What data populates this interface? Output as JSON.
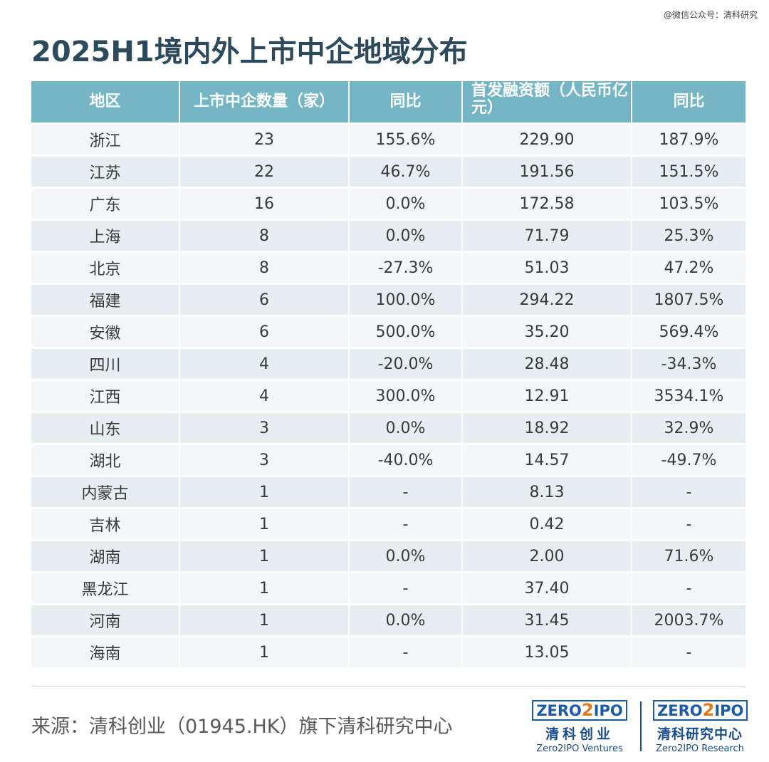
{
  "watermark": "@微信公众号：清科研究",
  "title": "2025H1境内外上市中企地域分布",
  "table": {
    "headers": [
      "地区",
      "上市中企数量（家）",
      "同比",
      "首发融资额（人民币亿元）",
      "同比"
    ],
    "rows": [
      [
        "浙江",
        "23",
        "155.6%",
        "229.90",
        "187.9%"
      ],
      [
        "江苏",
        "22",
        "46.7%",
        "191.56",
        "151.5%"
      ],
      [
        "广东",
        "16",
        "0.0%",
        "172.58",
        "103.5%"
      ],
      [
        "上海",
        "8",
        "0.0%",
        "71.79",
        "25.3%"
      ],
      [
        "北京",
        "8",
        "-27.3%",
        "51.03",
        "47.2%"
      ],
      [
        "福建",
        "6",
        "100.0%",
        "294.22",
        "1807.5%"
      ],
      [
        "安徽",
        "6",
        "500.0%",
        "35.20",
        "569.4%"
      ],
      [
        "四川",
        "4",
        "-20.0%",
        "28.48",
        "-34.3%"
      ],
      [
        "江西",
        "4",
        "300.0%",
        "12.91",
        "3534.1%"
      ],
      [
        "山东",
        "3",
        "0.0%",
        "18.92",
        "32.9%"
      ],
      [
        "湖北",
        "3",
        "-40.0%",
        "14.57",
        "-49.7%"
      ],
      [
        "内蒙古",
        "1",
        "-",
        "8.13",
        "-"
      ],
      [
        "吉林",
        "1",
        "-",
        "0.42",
        "-"
      ],
      [
        "湖南",
        "1",
        "0.0%",
        "2.00",
        "71.6%"
      ],
      [
        "黑龙江",
        "1",
        "-",
        "37.40",
        "-"
      ],
      [
        "河南",
        "1",
        "0.0%",
        "31.45",
        "2003.7%"
      ],
      [
        "海南",
        "1",
        "-",
        "13.05",
        "-"
      ]
    ]
  },
  "source": "来源：清科创业（01945.HK）旗下清科研究中心",
  "logos": {
    "ventures": {
      "brand_a": "ZERO",
      "brand_b": "2",
      "brand_c": "IPO",
      "cn": "清科创业",
      "en": "Zero2IPO Ventures"
    },
    "research": {
      "brand_a": "ZERO",
      "brand_b": "2",
      "brand_c": "IPO",
      "cn": "清科研究中心",
      "en": "Zero2IPO Research"
    }
  },
  "colors": {
    "header_bg": "#74b6c6",
    "title": "#2d4a5c",
    "logo_blue": "#1a5aa7",
    "logo_orange": "#e5791a"
  }
}
